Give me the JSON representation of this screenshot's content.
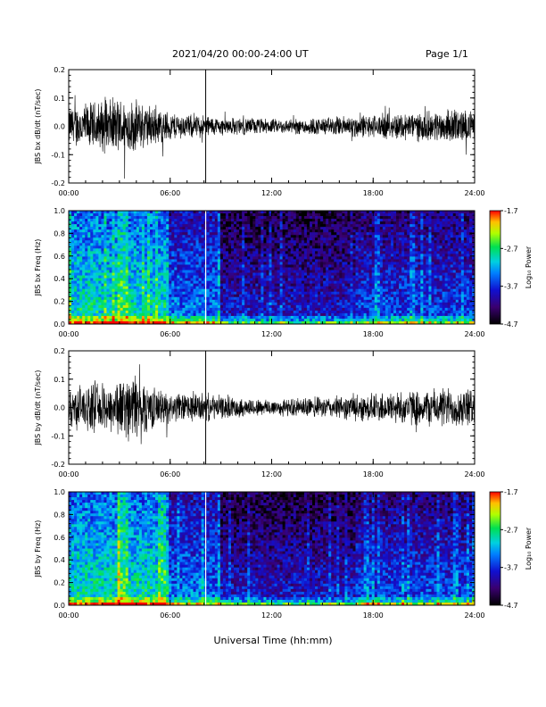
{
  "header": {
    "title": "2021/04/20  00:00-24:00 UT",
    "page": "Page 1/1"
  },
  "xlabel": "Universal Time (hh:mm)",
  "colors": {
    "trace": "#000000",
    "colorbar_low": "#000000",
    "colorbar_mid": "#00c8ff",
    "colorbar_high": "#ff0000"
  },
  "chart_data": [
    {
      "type": "line",
      "ylabel": "JBS bx dB/dt (nT/sec)",
      "x_ticks": [
        "00:00",
        "06:00",
        "12:00",
        "18:00",
        "24:00"
      ],
      "y_ticks": [
        "0.2",
        "0.1",
        "0.0",
        "-0.1",
        "-0.2"
      ],
      "ylim": [
        -0.2,
        0.2
      ],
      "xlim_hours": [
        0,
        24
      ],
      "spike_hour": 8.1,
      "series": [
        {
          "x": [
            0,
            1,
            2,
            3,
            4,
            5,
            6,
            7,
            8,
            9,
            10,
            11,
            12,
            13,
            14,
            15,
            16,
            17,
            18,
            19,
            20,
            21,
            22,
            23,
            24
          ],
          "amplitude": [
            0.07,
            0.08,
            0.09,
            0.1,
            0.09,
            0.07,
            0.05,
            0.04,
            0.04,
            0.03,
            0.03,
            0.03,
            0.025,
            0.025,
            0.03,
            0.03,
            0.035,
            0.04,
            0.04,
            0.045,
            0.05,
            0.05,
            0.055,
            0.06,
            0.05
          ]
        }
      ]
    },
    {
      "type": "heatmap",
      "ylabel": "JBS bx Freq (Hz)",
      "x_ticks": [
        "00:00",
        "06:00",
        "12:00",
        "18:00",
        "24:00"
      ],
      "y_ticks": [
        "1.0",
        "0.8",
        "0.6",
        "0.4",
        "0.2",
        "0.0"
      ],
      "ylim": [
        0,
        1.0
      ],
      "colorbar_label": "Log₁₀ Power",
      "colorbar_ticks": [
        "-1.7",
        "-2.7",
        "-3.7",
        "-4.7"
      ],
      "zlim": [
        -4.7,
        -1.7
      ],
      "band_hour": 8.1
    },
    {
      "type": "line",
      "ylabel": "JBS by dB/dt (nT/sec)",
      "x_ticks": [
        "00:00",
        "06:00",
        "12:00",
        "18:00",
        "24:00"
      ],
      "y_ticks": [
        "0.2",
        "0.1",
        "0.0",
        "-0.1",
        "-0.2"
      ],
      "ylim": [
        -0.2,
        0.2
      ],
      "xlim_hours": [
        0,
        24
      ],
      "spike_hour": 8.1,
      "series": [
        {
          "x": [
            0,
            1,
            2,
            3,
            4,
            5,
            6,
            7,
            8,
            9,
            10,
            11,
            12,
            13,
            14,
            15,
            16,
            17,
            18,
            19,
            20,
            21,
            22,
            23,
            24
          ],
          "amplitude": [
            0.07,
            0.08,
            0.08,
            0.1,
            0.12,
            0.07,
            0.05,
            0.05,
            0.05,
            0.04,
            0.035,
            0.03,
            0.03,
            0.03,
            0.035,
            0.035,
            0.04,
            0.045,
            0.05,
            0.055,
            0.06,
            0.06,
            0.07,
            0.07,
            0.06
          ]
        }
      ]
    },
    {
      "type": "heatmap",
      "ylabel": "JBS by Freq (Hz)",
      "x_ticks": [
        "00:00",
        "06:00",
        "12:00",
        "18:00",
        "24:00"
      ],
      "y_ticks": [
        "1.0",
        "0.8",
        "0.6",
        "0.4",
        "0.2",
        "0.0"
      ],
      "ylim": [
        0,
        1.0
      ],
      "colorbar_label": "Log₁₀ Power",
      "colorbar_ticks": [
        "-1.7",
        "-2.7",
        "-3.7",
        "-4.7"
      ],
      "zlim": [
        -4.7,
        -1.7
      ],
      "band_hour": 8.1
    }
  ]
}
